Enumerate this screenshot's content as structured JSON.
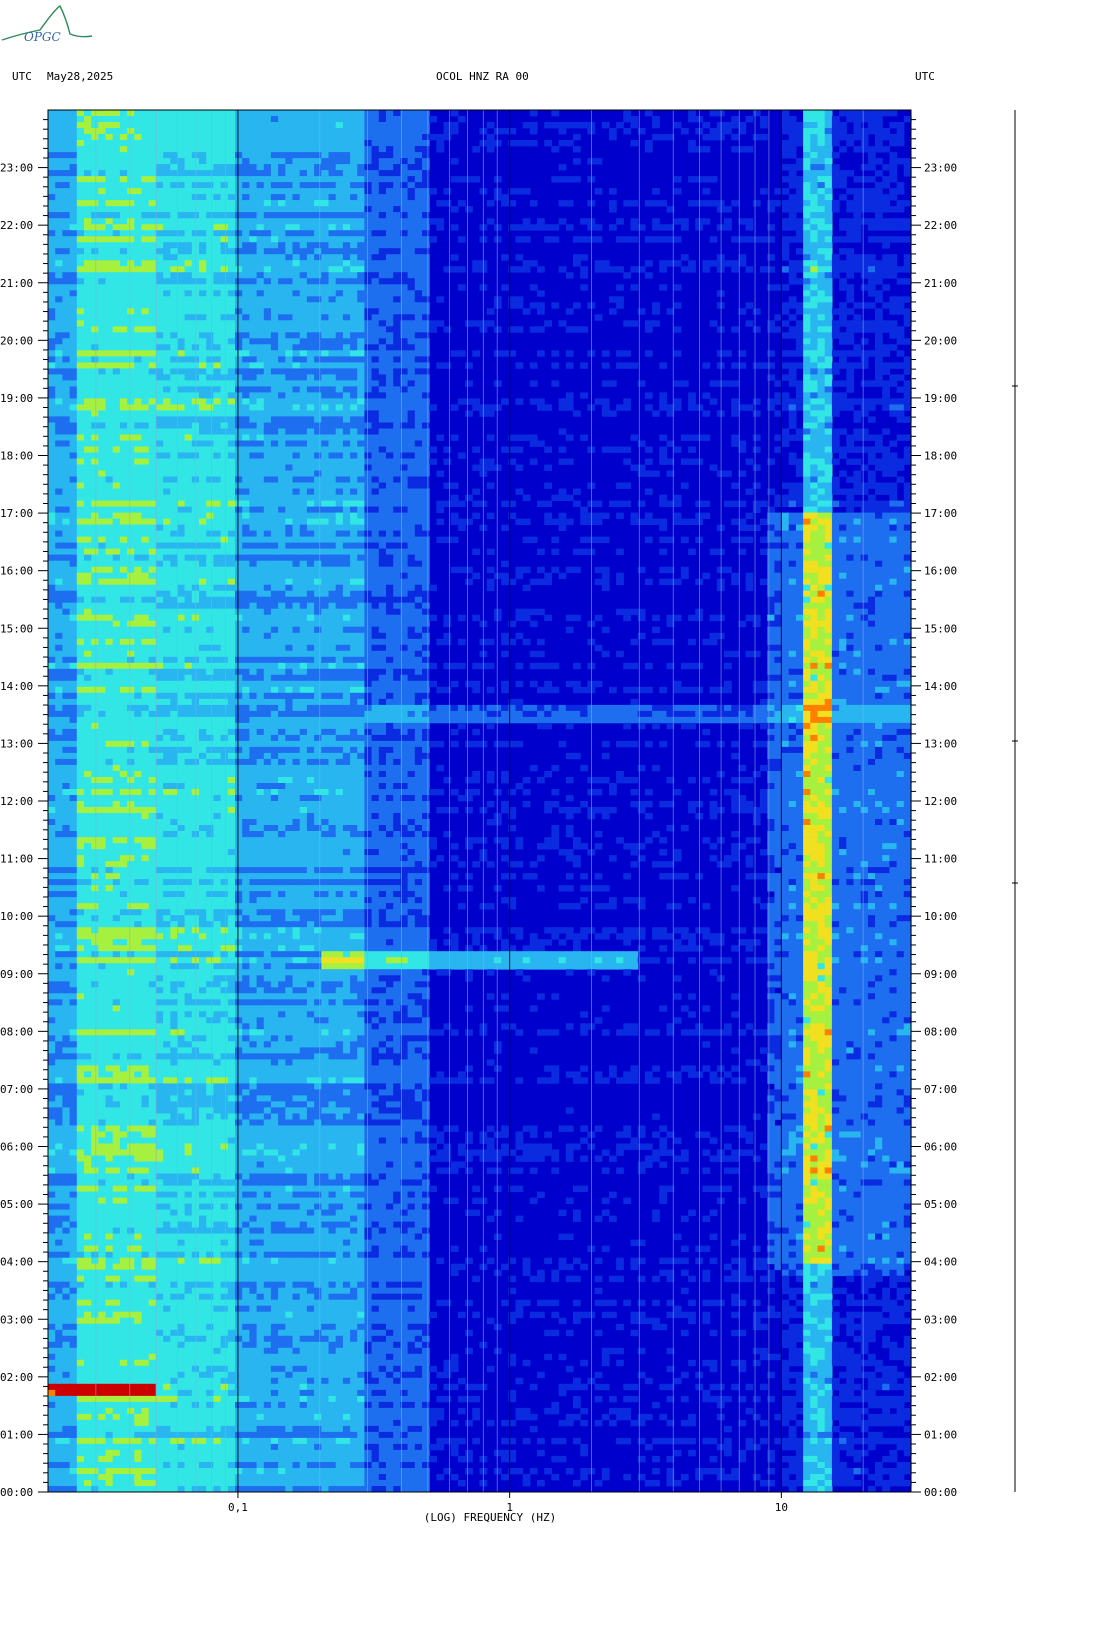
{
  "header": {
    "left_utc": "UTC",
    "date": "May28,2025",
    "station": "OCOL HNZ RA 00",
    "right_utc": "UTC"
  },
  "logo": {
    "text": "OPGC",
    "color": "#2e8b57"
  },
  "chart_data": {
    "type": "heatmap",
    "title": "OCOL HNZ RA 00",
    "xlabel": "(LOG) FREQUENCY (HZ)",
    "ylabel": "UTC",
    "x_scale": "log",
    "xlim": [
      0.02,
      30
    ],
    "x_ticks": [
      {
        "value": 0.1,
        "label": "0,1"
      },
      {
        "value": 1,
        "label": "1"
      },
      {
        "value": 10,
        "label": "10"
      }
    ],
    "ylim": [
      0,
      24
    ],
    "y_ticks": [
      {
        "value": 0,
        "label": "00:00"
      },
      {
        "value": 1,
        "label": "01:00"
      },
      {
        "value": 2,
        "label": "02:00"
      },
      {
        "value": 3,
        "label": "03:00"
      },
      {
        "value": 4,
        "label": "04:00"
      },
      {
        "value": 5,
        "label": "05:00"
      },
      {
        "value": 6,
        "label": "06:00"
      },
      {
        "value": 7,
        "label": "07:00"
      },
      {
        "value": 8,
        "label": "08:00"
      },
      {
        "value": 9,
        "label": "09:00"
      },
      {
        "value": 10,
        "label": "10:00"
      },
      {
        "value": 11,
        "label": "11:00"
      },
      {
        "value": 12,
        "label": "12:00"
      },
      {
        "value": 13,
        "label": "13:00"
      },
      {
        "value": 14,
        "label": "14:00"
      },
      {
        "value": 15,
        "label": "15:00"
      },
      {
        "value": 16,
        "label": "16:00"
      },
      {
        "value": 17,
        "label": "17:00"
      },
      {
        "value": 18,
        "label": "18:00"
      },
      {
        "value": 19,
        "label": "19:00"
      },
      {
        "value": 20,
        "label": "20:00"
      },
      {
        "value": 21,
        "label": "21:00"
      },
      {
        "value": 22,
        "label": "22:00"
      },
      {
        "value": 23,
        "label": "23:00"
      }
    ],
    "colormap": [
      "#0000cc",
      "#0a2be0",
      "#1e6ef0",
      "#29b6f0",
      "#33e6e6",
      "#a6f040",
      "#f0e020",
      "#ff8000",
      "#cc0000"
    ],
    "grid": true,
    "events": [
      {
        "time": 1.8,
        "f_min": 0.02,
        "f_max": 0.05,
        "level": "high"
      },
      {
        "time": 9.25,
        "f_min": 0.2,
        "f_max": 3,
        "level": "medium"
      },
      {
        "time": 13.5,
        "f_min": 0.3,
        "f_max": 30,
        "level": "low"
      }
    ],
    "persistent_band_hz": [
      12,
      15
    ]
  }
}
